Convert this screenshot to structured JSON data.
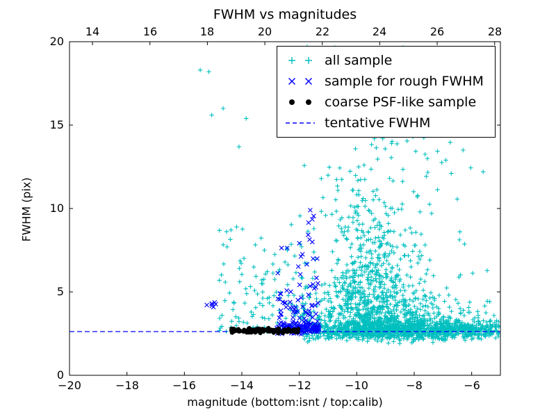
{
  "chart_data": {
    "type": "scatter",
    "title": "FWHM vs magnitudes",
    "xlabel": "magnitude (bottom:isnt / top:calib)",
    "ylabel": "FWHM (pix)",
    "grid": false,
    "x_axis_bottom": {
      "min": -20,
      "max": -5,
      "ticks": [
        -20,
        -18,
        -16,
        -14,
        -12,
        -10,
        -8,
        -6
      ],
      "tick_labels": [
        "−20",
        "−18",
        "−16",
        "−14",
        "−12",
        "−10",
        "−8",
        "−6"
      ]
    },
    "x_axis_top": {
      "min": 13.2,
      "max": 28.2,
      "ticks": [
        14,
        16,
        18,
        20,
        22,
        24,
        26,
        28
      ],
      "tick_labels": [
        "14",
        "16",
        "18",
        "20",
        "22",
        "24",
        "26",
        "28"
      ],
      "relation": "calib = isnt + 33.2"
    },
    "y_axis": {
      "min": 0,
      "max": 20,
      "ticks": [
        0,
        5,
        10,
        15,
        20
      ],
      "tick_labels": [
        "0",
        "5",
        "10",
        "15",
        "20"
      ]
    },
    "tentative_fwhm": 2.62,
    "line_color": "#0000ff",
    "legend": {
      "position": "upper right",
      "items": [
        {
          "label": "all sample",
          "marker": "plus",
          "color": "#00bfbf"
        },
        {
          "label": "sample for rough FWHM",
          "marker": "x",
          "color": "#0000ff"
        },
        {
          "label": "coarse PSF-like sample",
          "marker": "dot",
          "color": "#000000"
        },
        {
          "label": "tentative FWHM",
          "marker": "dashed-line",
          "color": "#0000ff"
        }
      ]
    },
    "seed": 42,
    "series": [
      {
        "name": "all sample",
        "marker": "plus",
        "color": "#00bfbf",
        "size": 3.2,
        "clusters": [
          {
            "n": 1000,
            "x": {
              "dist": "normal",
              "mean": -8.9,
              "sd": 1.7,
              "min": -11.9,
              "max": -5.05
            },
            "y": {
              "dist": "normal",
              "mean": 2.7,
              "sd": 0.3,
              "min": 1.9,
              "max": 3.8
            }
          },
          {
            "n": 360,
            "x": {
              "dist": "normal",
              "mean": -9.0,
              "sd": 1.8,
              "min": -12.4,
              "max": -5.05
            },
            "y": {
              "dist": "halfnormal",
              "base": 2.7,
              "sd": 1.2,
              "min": 2.3,
              "max": 7.8
            }
          },
          {
            "n": 470,
            "x": {
              "dist": "normal",
              "mean": -9.5,
              "sd": 0.8,
              "min": -11.0,
              "max": -7.5
            },
            "y": {
              "dist": "halfnormal",
              "base": 3.0,
              "sd": 3.4,
              "min": 3.0,
              "max": 15.2
            }
          },
          {
            "n": 220,
            "x": {
              "dist": "normal",
              "mean": -9.0,
              "sd": 1.7,
              "min": -12.5,
              "max": -5.2
            },
            "y": {
              "dist": "uniform",
              "min": 3.5,
              "max": 19.8
            }
          },
          {
            "n": 140,
            "x": {
              "dist": "uniform",
              "min": -14.8,
              "max": -11.4
            },
            "y": {
              "dist": "halfnormal",
              "base": 2.55,
              "sd": 3.0,
              "min": 2.4,
              "max": 16.5
            }
          },
          {
            "n": 170,
            "x": {
              "dist": "uniform",
              "min": -7.3,
              "max": -5.05
            },
            "y": {
              "dist": "normal",
              "mean": 2.65,
              "sd": 0.25,
              "min": 2.1,
              "max": 3.4
            }
          }
        ],
        "points": [
          [
            -15.45,
            18.3
          ],
          [
            -15.15,
            18.2
          ],
          [
            -15.05,
            15.6
          ],
          [
            -14.65,
            16.0
          ],
          [
            -14.1,
            13.7
          ],
          [
            -13.85,
            15.4
          ],
          [
            -11.4,
            18.8
          ],
          [
            -10.2,
            19.6
          ],
          [
            -9.0,
            19.3
          ],
          [
            -8.7,
            18.5
          ],
          [
            -7.6,
            17.2
          ],
          [
            -6.9,
            12.9
          ],
          [
            -6.3,
            13.5
          ],
          [
            -5.6,
            12.2
          ]
        ]
      },
      {
        "name": "sample for rough FWHM",
        "marker": "x",
        "color": "#0000ff",
        "size": 3.0,
        "clusters": [
          {
            "n": 72,
            "x": {
              "dist": "uniform",
              "min": -12.75,
              "max": -11.35
            },
            "y": {
              "dist": "halfnormal",
              "base": 2.9,
              "sd": 2.4,
              "min": 2.9,
              "max": 9.7
            }
          },
          {
            "n": 110,
            "x": {
              "dist": "uniform",
              "min": -12.8,
              "max": -11.3
            },
            "y": {
              "dist": "normal",
              "mean": 2.8,
              "sd": 0.18,
              "min": 2.45,
              "max": 3.3
            }
          },
          {
            "n": 7,
            "x": {
              "dist": "normal",
              "mean": -15.0,
              "sd": 0.08,
              "min": -15.25,
              "max": -14.75
            },
            "y": {
              "dist": "normal",
              "mean": 4.4,
              "sd": 0.18,
              "min": 3.95,
              "max": 4.85
            }
          }
        ],
        "points": [
          [
            -11.62,
            9.9
          ],
          [
            -11.55,
            9.35
          ],
          [
            -11.68,
            9.15
          ],
          [
            -11.5,
            9.55
          ]
        ]
      },
      {
        "name": "coarse PSF-like sample",
        "marker": "dot",
        "color": "#000000",
        "size": 2.8,
        "clusters": [
          {
            "n": 175,
            "x": {
              "dist": "uniform",
              "min": -14.4,
              "max": -12.0
            },
            "y": {
              "dist": "normal",
              "mean": 2.68,
              "sd": 0.07,
              "min": 2.45,
              "max": 2.95
            }
          }
        ],
        "points": []
      }
    ]
  }
}
